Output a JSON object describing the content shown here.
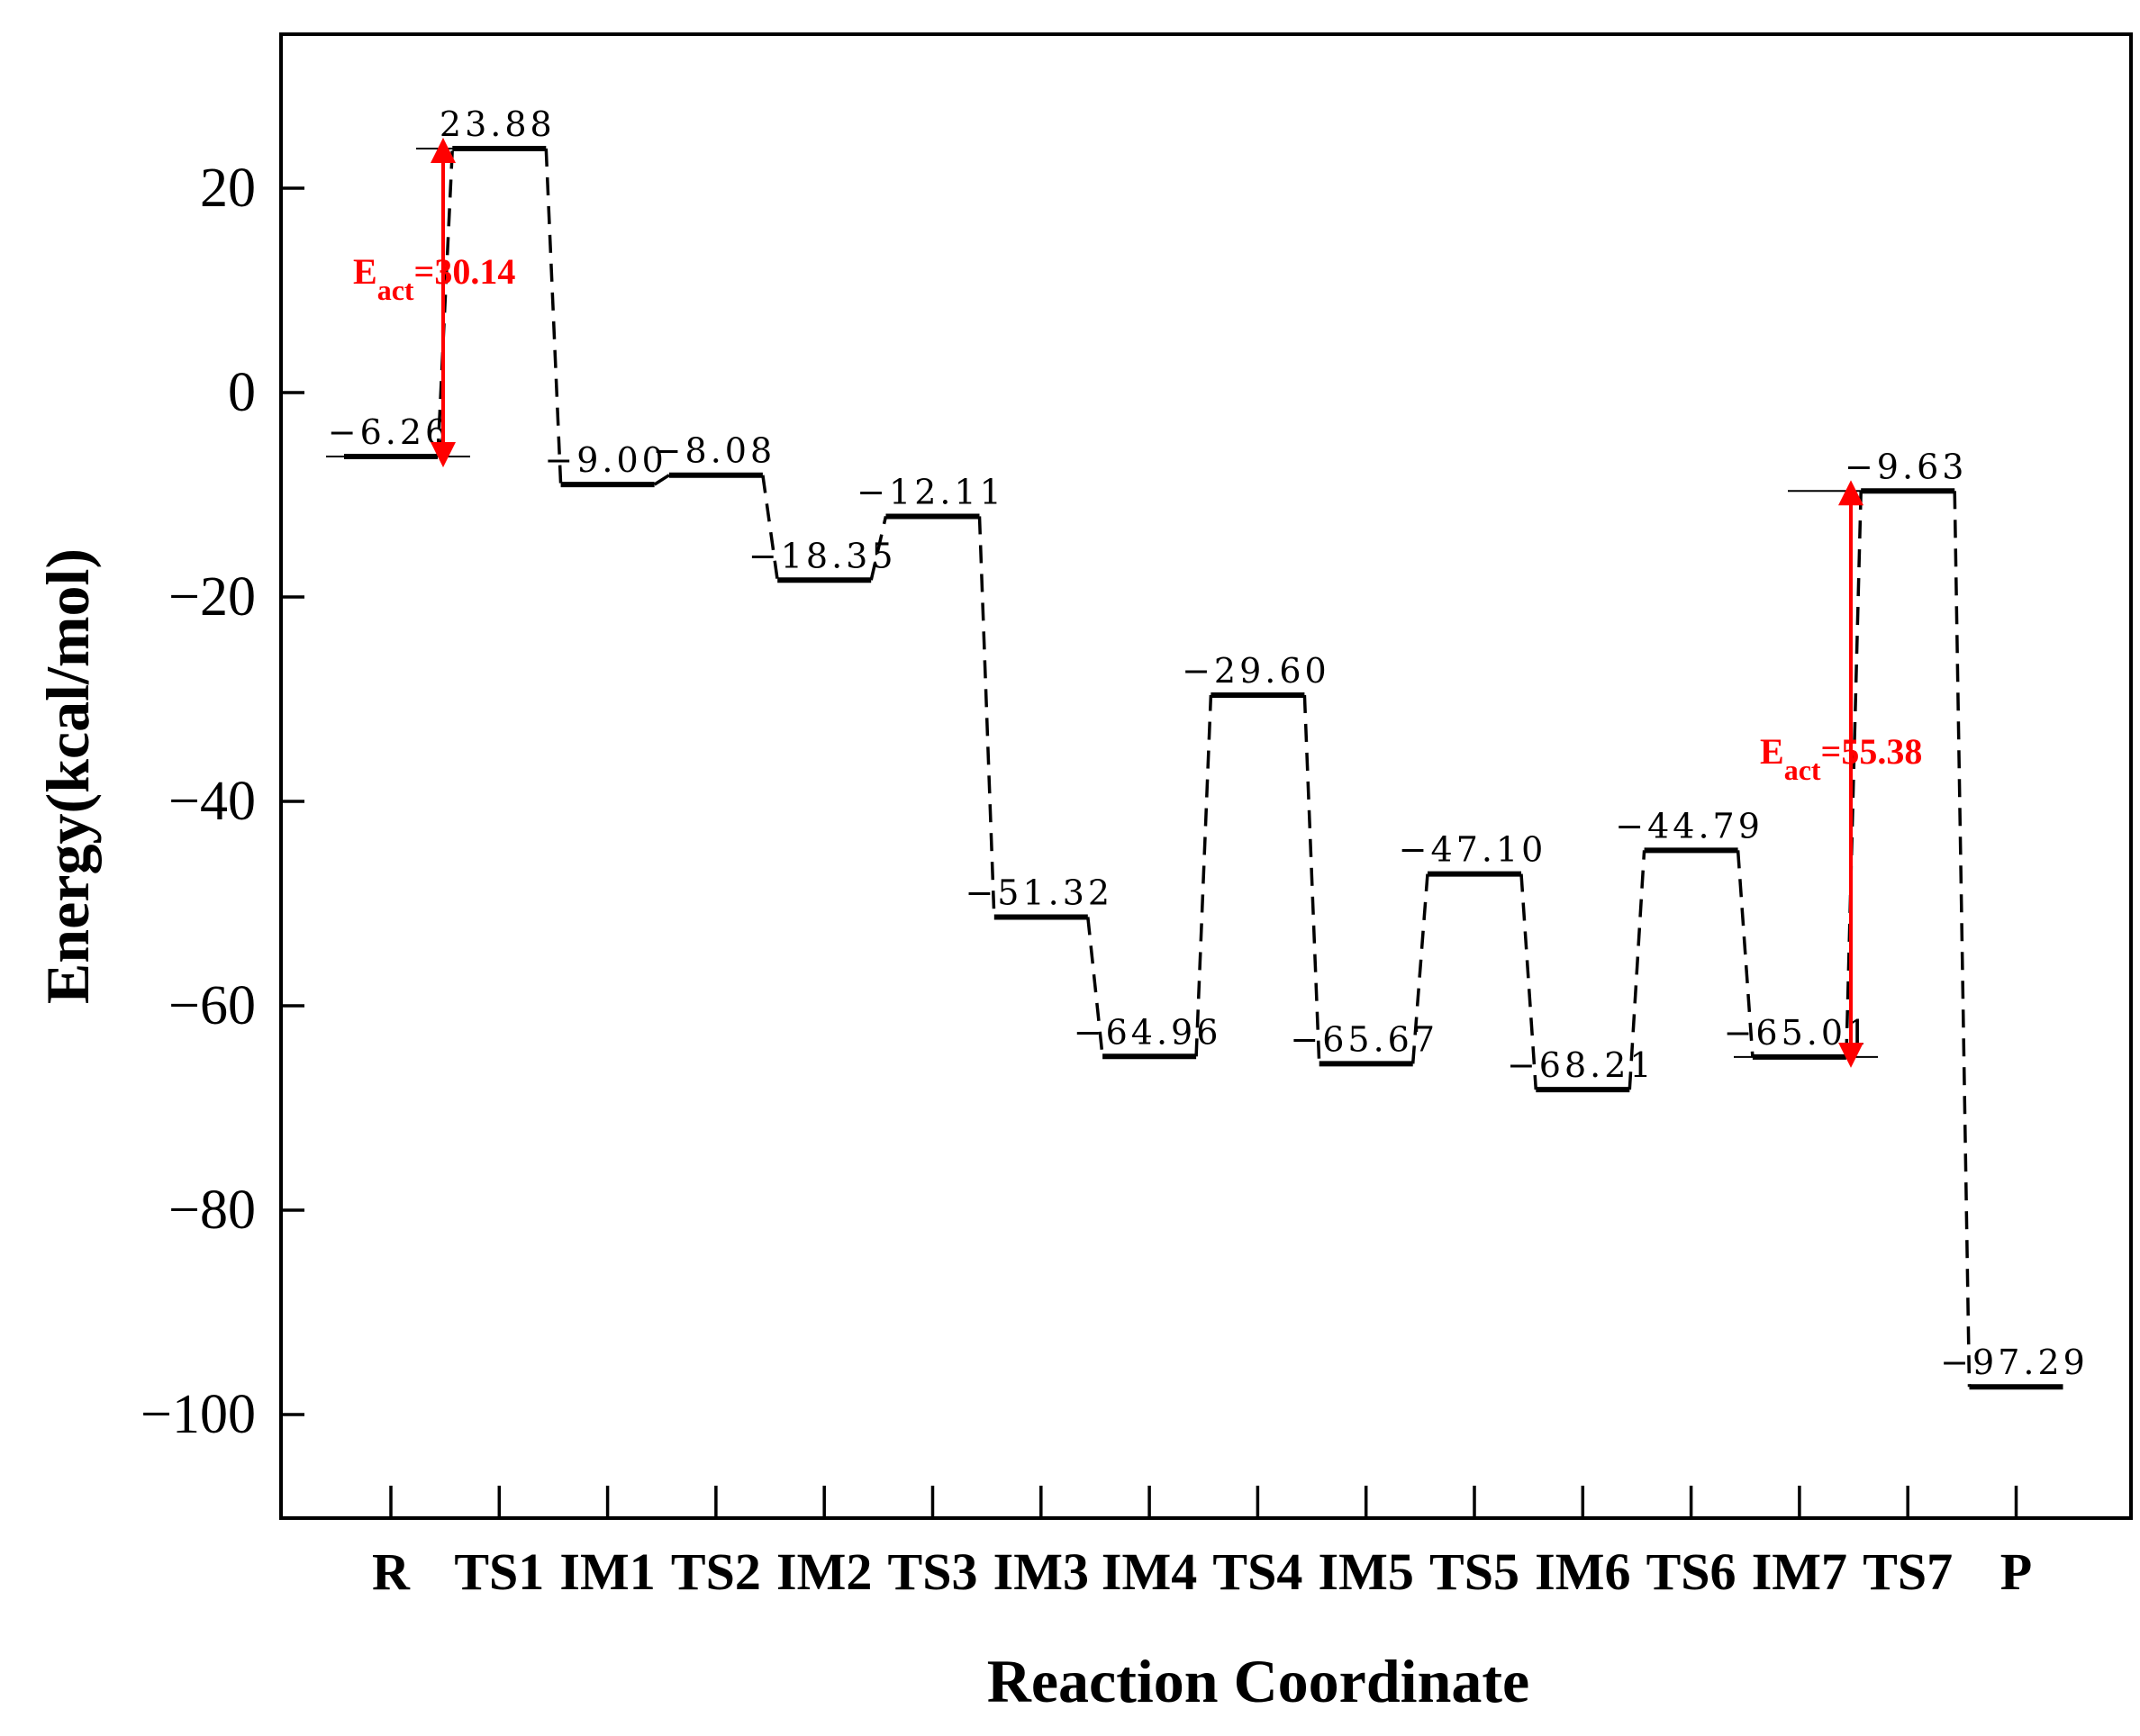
{
  "chart_data": {
    "type": "energy_profile",
    "title": "",
    "xlabel": "Reaction Coordinate",
    "ylabel": "Energy(kcal/mol)",
    "ylim": [
      -110,
      35
    ],
    "yticks": [
      20,
      0,
      -20,
      -40,
      -60,
      -80,
      -100
    ],
    "ytick_labels": [
      "20",
      "0",
      "−20",
      "−40",
      "−60",
      "−80",
      "−100"
    ],
    "categories": [
      "R",
      "TS1",
      "IM1",
      "TS2",
      "IM2",
      "TS3",
      "IM3",
      "IM4",
      "TS4",
      "IM5",
      "TS5",
      "IM6",
      "TS6",
      "IM7",
      "TS7",
      "P"
    ],
    "levels": [
      {
        "category": "R",
        "value": -6.26,
        "label": "−6.26"
      },
      {
        "category": "TS1",
        "value": 23.88,
        "label": "23.88"
      },
      {
        "category": "IM1",
        "value": -9.0,
        "label": "−9.00"
      },
      {
        "category": "TS2",
        "value": -8.08,
        "label": "−8.08"
      },
      {
        "category": "IM2",
        "value": -18.35,
        "label": "−18.35"
      },
      {
        "category": "TS3",
        "value": -12.11,
        "label": "−12.11"
      },
      {
        "category": "IM3",
        "value": -51.32,
        "label": "−51.32"
      },
      {
        "category": "IM4",
        "value": -64.96,
        "label": "−64.96"
      },
      {
        "category": "TS4",
        "value": -29.6,
        "label": "−29.60"
      },
      {
        "category": "IM5",
        "value": -65.67,
        "label": "−65.67"
      },
      {
        "category": "TS5",
        "value": -47.1,
        "label": "−47.10"
      },
      {
        "category": "IM6",
        "value": -68.21,
        "label": "−68.21"
      },
      {
        "category": "TS6",
        "value": -44.79,
        "label": "−44.79"
      },
      {
        "category": "IM7",
        "value": -65.01,
        "label": "−65.01"
      },
      {
        "category": "TS7",
        "value": -9.63,
        "label": "−9.63"
      },
      {
        "category": "P",
        "value": -97.29,
        "label": "−97.29"
      }
    ],
    "annotations": [
      {
        "text_main": "E",
        "text_sub": "act",
        "text_rest": "=30.14",
        "from": -6.26,
        "to": 23.88,
        "color": "#ff0000"
      },
      {
        "text_main": "E",
        "text_sub": "act",
        "text_rest": "=55.38",
        "from": -65.01,
        "to": -9.63,
        "color": "#ff0000"
      }
    ],
    "grid": false,
    "legend": "none"
  }
}
